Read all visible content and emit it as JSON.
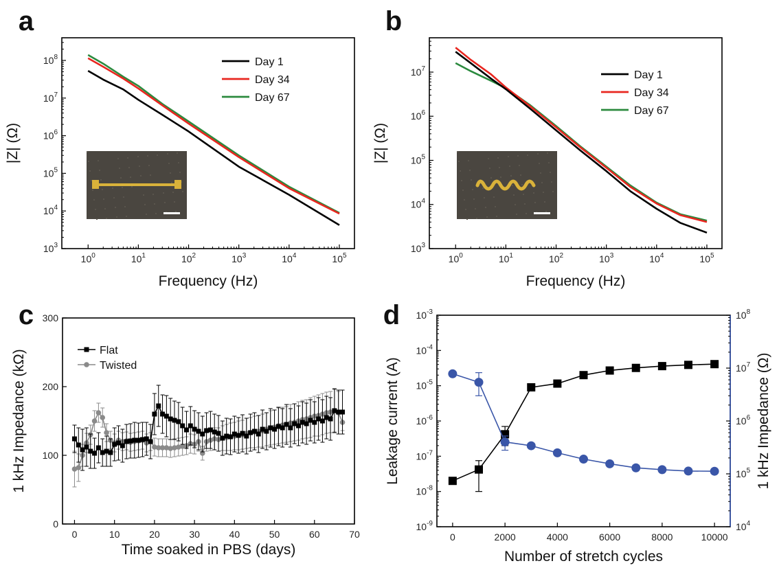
{
  "chart_data": [
    {
      "panel": "a",
      "type": "line",
      "xlabel": "Frequency (Hz)",
      "ylabel": "|Z| (Ω)",
      "xscale": "log",
      "yscale": "log",
      "xlim": [
        0.3,
        200000
      ],
      "ylim": [
        1000,
        400000000
      ],
      "x_ticks": [
        "10^0",
        "10^1",
        "10^2",
        "10^3",
        "10^4",
        "10^5"
      ],
      "y_ticks": [
        "10^3",
        "10^4",
        "10^5",
        "10^6",
        "10^7",
        "10^8"
      ],
      "legend_position": "top-right",
      "inset": "photo of flat gold electrode with scale bar",
      "series": [
        {
          "name": "Day 1",
          "color": "#000000",
          "x": [
            1,
            2,
            5,
            10,
            30,
            100,
            1000,
            10000,
            100000
          ],
          "y": [
            53000000,
            31000000,
            17000000,
            9000000,
            3600000,
            1300000,
            150000,
            27000,
            4200
          ]
        },
        {
          "name": "Day 34",
          "color": "#e8261f",
          "x": [
            1,
            2,
            5,
            10,
            30,
            100,
            1000,
            10000,
            100000
          ],
          "y": [
            115000000,
            68000000,
            33000000,
            18000000,
            6400000,
            2100000,
            270000,
            40000,
            8500
          ]
        },
        {
          "name": "Day 67",
          "color": "#2b8a3e",
          "x": [
            1,
            2,
            5,
            10,
            30,
            100,
            1000,
            10000,
            100000
          ],
          "y": [
            140000000,
            82000000,
            37000000,
            21000000,
            7000000,
            2400000,
            300000,
            44000,
            8900
          ]
        }
      ]
    },
    {
      "panel": "b",
      "type": "line",
      "xlabel": "Frequency (Hz)",
      "ylabel": "|Z| (Ω)",
      "xscale": "log",
      "yscale": "log",
      "xlim": [
        0.3,
        200000
      ],
      "ylim": [
        1000,
        60000000
      ],
      "x_ticks": [
        "10^0",
        "10^1",
        "10^2",
        "10^3",
        "10^4",
        "10^5"
      ],
      "y_ticks": [
        "10^3",
        "10^4",
        "10^5",
        "10^6",
        "10^7"
      ],
      "legend_position": "top-right",
      "inset": "photo of twisted gold electrode with scale bar",
      "series": [
        {
          "name": "Day 1",
          "color": "#000000",
          "x": [
            1,
            2,
            5,
            10,
            30,
            100,
            300,
            1000,
            3000,
            10000,
            30000,
            100000
          ],
          "y": [
            29000000,
            16000000,
            7200000,
            4100000,
            1500000,
            480000,
            170000,
            57000,
            20000,
            8000,
            3800,
            2300
          ]
        },
        {
          "name": "Day 34",
          "color": "#e8261f",
          "x": [
            1,
            2,
            5,
            10,
            30,
            100,
            300,
            1000,
            3000,
            10000,
            30000,
            100000
          ],
          "y": [
            36000000,
            19000000,
            9000000,
            4500000,
            1700000,
            560000,
            200000,
            68000,
            25000,
            10500,
            5700,
            4000
          ]
        },
        {
          "name": "Day 67",
          "color": "#2b8a3e",
          "x": [
            1,
            2,
            5,
            10,
            30,
            100,
            300,
            1000,
            3000,
            10000,
            30000,
            100000
          ],
          "y": [
            16000000,
            10500000,
            6400000,
            4300000,
            1800000,
            600000,
            210000,
            72000,
            27000,
            11000,
            6000,
            4300
          ]
        }
      ]
    },
    {
      "panel": "c",
      "type": "line",
      "xlabel": "Time soaked in PBS (days)",
      "ylabel": "1 kHz Impedance (kΩ)",
      "xlim": [
        -3,
        70
      ],
      "ylim": [
        0,
        300
      ],
      "x_ticks": [
        "0",
        "10",
        "20",
        "30",
        "40",
        "50",
        "60",
        "70"
      ],
      "y_ticks": [
        "0",
        "100",
        "200",
        "300"
      ],
      "legend_position": "top-left",
      "series": [
        {
          "name": "Flat",
          "color": "#000000",
          "marker": "square",
          "x": [
            0,
            1,
            2,
            3,
            4,
            5,
            6,
            7,
            8,
            9,
            10,
            11,
            12,
            13,
            14,
            15,
            16,
            17,
            18,
            19,
            20,
            21,
            22,
            23,
            24,
            25,
            26,
            27,
            28,
            29,
            30,
            31,
            32,
            33,
            34,
            35,
            36,
            37,
            38,
            39,
            40,
            41,
            42,
            43,
            44,
            45,
            46,
            47,
            48,
            49,
            50,
            51,
            52,
            53,
            54,
            55,
            56,
            57,
            58,
            59,
            60,
            61,
            62,
            63,
            64,
            65,
            66,
            67
          ],
          "y": [
            124,
            115,
            108,
            112,
            106,
            103,
            111,
            104,
            106,
            104,
            116,
            118,
            114,
            120,
            121,
            122,
            122,
            123,
            124,
            120,
            160,
            172,
            160,
            157,
            153,
            151,
            149,
            143,
            137,
            143,
            138,
            135,
            131,
            136,
            137,
            134,
            132,
            125,
            128,
            127,
            131,
            129,
            132,
            128,
            133,
            135,
            131,
            138,
            135,
            140,
            138,
            142,
            140,
            145,
            140,
            146,
            143,
            148,
            146,
            151,
            148,
            153,
            150,
            155,
            153,
            165,
            163,
            163
          ],
          "err": [
            20,
            25,
            30,
            28,
            25,
            22,
            22,
            20,
            22,
            20,
            24,
            25,
            24,
            25,
            25,
            26,
            25,
            25,
            24,
            25,
            30,
            30,
            28,
            30,
            30,
            28,
            28,
            27,
            27,
            28,
            27,
            27,
            26,
            26,
            27,
            26,
            26,
            25,
            26,
            26,
            26,
            26,
            27,
            26,
            27,
            27,
            27,
            28,
            27,
            28,
            28,
            28,
            28,
            29,
            28,
            29,
            29,
            30,
            30,
            30,
            30,
            31,
            31,
            31,
            31,
            32,
            32,
            32
          ]
        },
        {
          "name": "Twisted",
          "color": "#8a8a8a",
          "marker": "circle",
          "x": [
            0,
            1,
            2,
            3,
            4,
            5,
            6,
            7,
            8,
            9,
            10,
            11,
            12,
            13,
            14,
            15,
            16,
            17,
            18,
            19,
            20,
            21,
            22,
            23,
            24,
            25,
            26,
            27,
            28,
            29,
            30,
            31,
            32,
            33,
            34,
            35,
            36,
            37,
            38,
            39,
            40,
            41,
            42,
            43,
            44,
            45,
            46,
            47,
            48,
            49,
            50,
            51,
            52,
            53,
            54,
            55,
            56,
            57,
            58,
            59,
            60,
            61,
            62,
            63,
            64,
            65,
            66,
            67
          ],
          "y": [
            80,
            82,
            100,
            118,
            130,
            150,
            162,
            155,
            133,
            122,
            118,
            122,
            120,
            121,
            119,
            120,
            121,
            122,
            118,
            120,
            112,
            111,
            111,
            111,
            110,
            111,
            112,
            113,
            114,
            117,
            116,
            120,
            103,
            120,
            122,
            124,
            123,
            125,
            126,
            127,
            128,
            129,
            130,
            132,
            133,
            134,
            135,
            136,
            138,
            140,
            141,
            143,
            144,
            145,
            147,
            148,
            150,
            152,
            153,
            155,
            157,
            158,
            160,
            162,
            163,
            165,
            162,
            148
          ],
          "err": [
            26,
            20,
            16,
            14,
            14,
            15,
            14,
            14,
            13,
            13,
            13,
            13,
            13,
            13,
            13,
            13,
            13,
            13,
            13,
            13,
            13,
            13,
            13,
            13,
            13,
            13,
            13,
            13,
            13,
            14,
            14,
            14,
            10,
            14,
            15,
            16,
            17,
            18,
            19,
            20,
            20,
            21,
            21,
            22,
            22,
            23,
            23,
            24,
            24,
            25,
            25,
            26,
            26,
            26,
            27,
            27,
            28,
            28,
            28,
            29,
            29,
            30,
            30,
            30,
            30,
            31,
            31,
            12
          ]
        }
      ]
    },
    {
      "panel": "d",
      "type": "scatter",
      "xlabel": "Number of stretch cycles",
      "ylabel": "Leakage current (A)",
      "y2label": "1 kHz Impedance (Ω)",
      "xlim": [
        -600,
        10600
      ],
      "x_ticks": [
        "0",
        "2000",
        "4000",
        "6000",
        "8000",
        "10000"
      ],
      "y_ticks": [
        "10^-9",
        "10^-8",
        "10^-7",
        "10^-6",
        "10^-5",
        "10^-4",
        "10^-3"
      ],
      "y2_ticks": [
        "10^4",
        "10^5",
        "10^6",
        "10^7",
        "10^8"
      ],
      "ylim": [
        1e-09,
        0.001
      ],
      "yscale": "log",
      "y2lim": [
        10000,
        100000000
      ],
      "y2scale": "log",
      "series": [
        {
          "name": "Leakage current",
          "axis": "left",
          "color": "#000000",
          "marker": "square",
          "x": [
            0,
            1000,
            2000,
            3000,
            4000,
            5000,
            6000,
            7000,
            8000,
            9000,
            10000
          ],
          "y": [
            2e-08,
            4.2e-08,
            4.2e-07,
            9e-06,
            1.15e-05,
            2e-05,
            2.7e-05,
            3.2e-05,
            3.6e-05,
            3.9e-05,
            4.1e-05
          ],
          "err_low": [
            2e-08,
            1e-08,
            2e-07,
            9e-06,
            1.15e-05,
            2e-05,
            2.7e-05,
            3.2e-05,
            3.6e-05,
            3.9e-05,
            4.1e-05
          ],
          "err_high": [
            2e-08,
            7.5e-08,
            7e-07,
            9e-06,
            1.15e-05,
            2e-05,
            2.7e-05,
            3.2e-05,
            3.6e-05,
            3.9e-05,
            4.1e-05
          ]
        },
        {
          "name": "1 kHz Impedance",
          "axis": "right",
          "color": "#3a56a8",
          "marker": "circle",
          "x": [
            0,
            1000,
            2000,
            3000,
            4000,
            5000,
            6000,
            7000,
            8000,
            9000,
            10000
          ],
          "y": [
            7800000,
            5400000,
            400000,
            340000,
            250000,
            190000,
            155000,
            130000,
            120000,
            113000,
            112000
          ],
          "err_low": [
            7800000,
            3000000,
            280000,
            340000,
            250000,
            190000,
            155000,
            130000,
            120000,
            113000,
            112000
          ],
          "err_high": [
            7800000,
            8200000,
            520000,
            340000,
            250000,
            190000,
            155000,
            130000,
            120000,
            113000,
            112000
          ]
        }
      ]
    }
  ]
}
